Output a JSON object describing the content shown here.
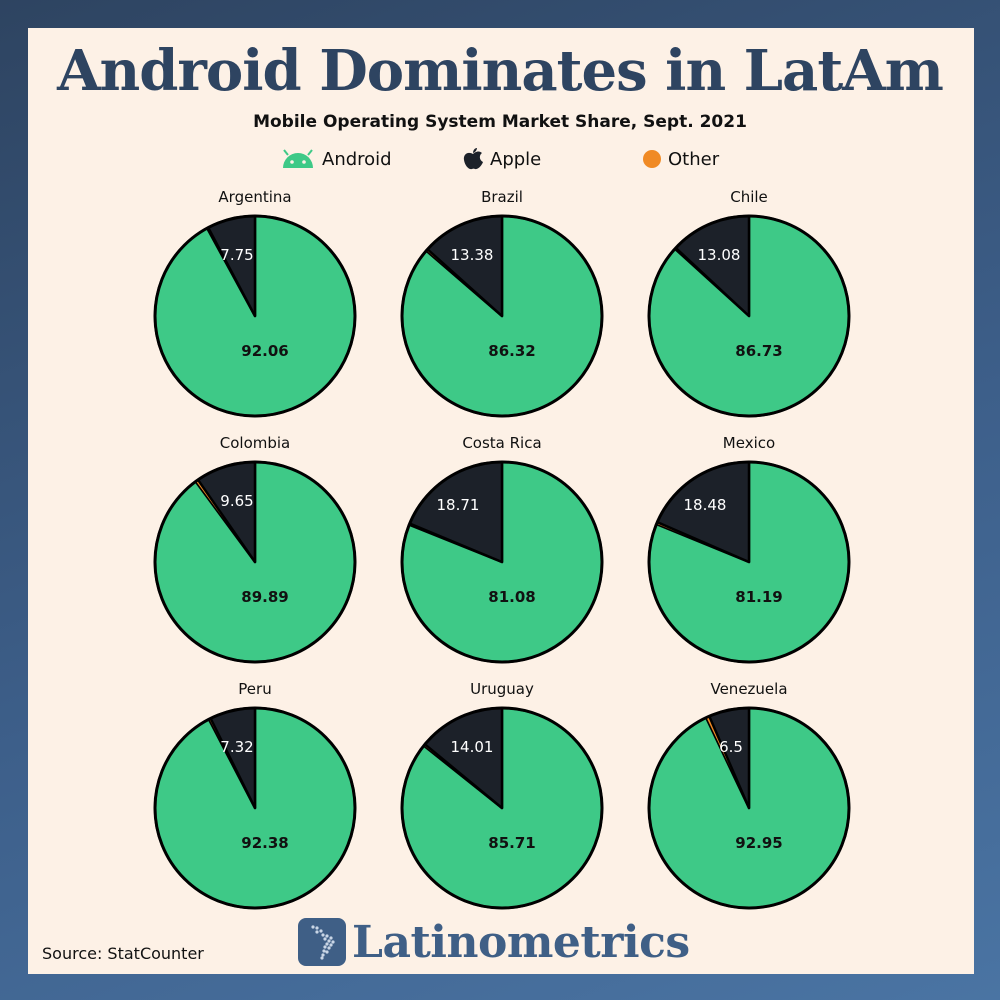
{
  "title": "Android Dominates in LatAm",
  "subtitle": "Mobile Operating System Market Share, Sept. 2021",
  "legend": {
    "android": "Android",
    "apple": "Apple",
    "other": "Other"
  },
  "colors": {
    "android": "#3ec987",
    "apple": "#1c2129",
    "other": "#f08a24",
    "title": "#2e4461",
    "panel": "#fdf1e6"
  },
  "source": "Source: StatCounter",
  "brand": "Latinometrics",
  "chart_data": [
    {
      "type": "pie",
      "title": "Argentina",
      "categories": [
        "Android",
        "Apple",
        "Other"
      ],
      "values": [
        92.06,
        7.75,
        0.19
      ],
      "labels": [
        "92.06",
        "7.75",
        ""
      ]
    },
    {
      "type": "pie",
      "title": "Brazil",
      "categories": [
        "Android",
        "Apple",
        "Other"
      ],
      "values": [
        86.32,
        13.38,
        0.3
      ],
      "labels": [
        "86.32",
        "13.38",
        ""
      ]
    },
    {
      "type": "pie",
      "title": "Chile",
      "categories": [
        "Android",
        "Apple",
        "Other"
      ],
      "values": [
        86.73,
        13.08,
        0.19
      ],
      "labels": [
        "86.73",
        "13.08",
        ""
      ]
    },
    {
      "type": "pie",
      "title": "Colombia",
      "categories": [
        "Android",
        "Apple",
        "Other"
      ],
      "values": [
        89.89,
        9.65,
        0.46
      ],
      "labels": [
        "89.89",
        "9.65",
        ""
      ]
    },
    {
      "type": "pie",
      "title": "Costa Rica",
      "categories": [
        "Android",
        "Apple",
        "Other"
      ],
      "values": [
        81.08,
        18.71,
        0.21
      ],
      "labels": [
        "81.08",
        "18.71",
        ""
      ]
    },
    {
      "type": "pie",
      "title": "Mexico",
      "categories": [
        "Android",
        "Apple",
        "Other"
      ],
      "values": [
        81.19,
        18.48,
        0.33
      ],
      "labels": [
        "81.19",
        "18.48",
        ""
      ]
    },
    {
      "type": "pie",
      "title": "Peru",
      "categories": [
        "Android",
        "Apple",
        "Other"
      ],
      "values": [
        92.38,
        7.32,
        0.3
      ],
      "labels": [
        "92.38",
        "7.32",
        ""
      ]
    },
    {
      "type": "pie",
      "title": "Uruguay",
      "categories": [
        "Android",
        "Apple",
        "Other"
      ],
      "values": [
        85.71,
        14.01,
        0.28
      ],
      "labels": [
        "85.71",
        "14.01",
        ""
      ]
    },
    {
      "type": "pie",
      "title": "Venezuela",
      "categories": [
        "Android",
        "Apple",
        "Other"
      ],
      "values": [
        92.95,
        6.5,
        0.55
      ],
      "labels": [
        "92.95",
        "6.5",
        ""
      ]
    }
  ]
}
